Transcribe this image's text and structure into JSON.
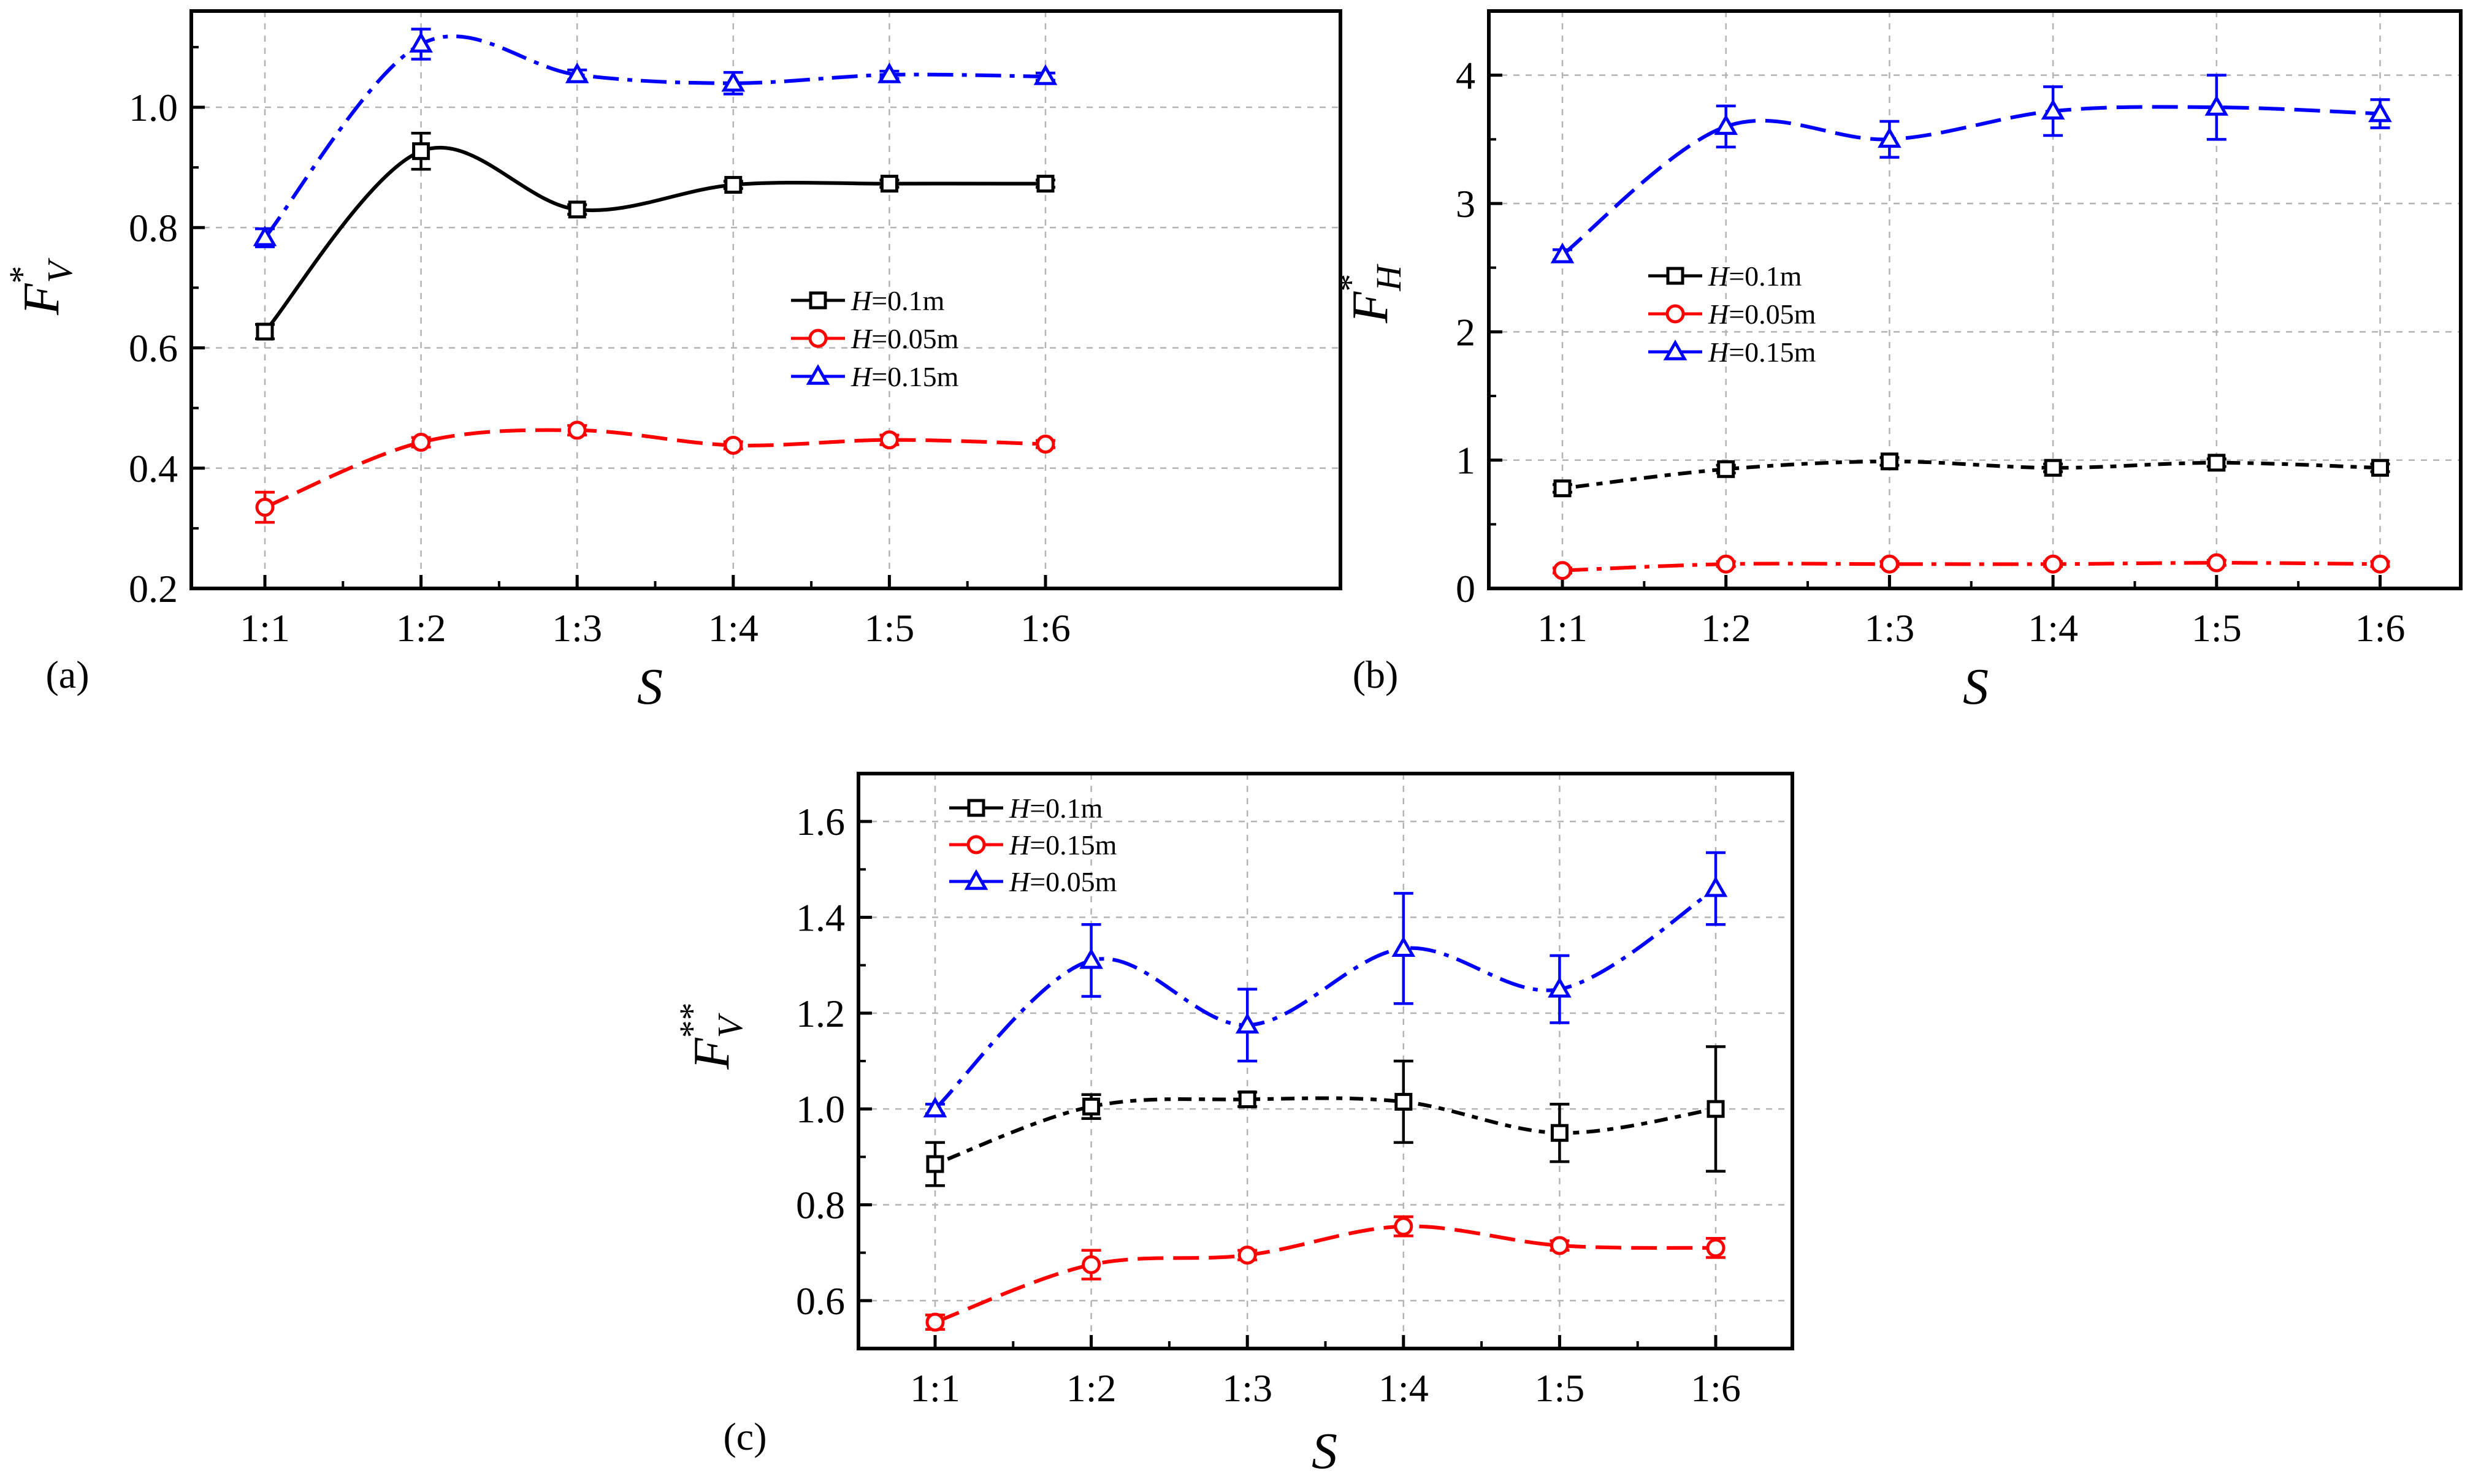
{
  "colors": {
    "black": "#000000",
    "red": "#ff0000",
    "blue": "#0000ff",
    "grid": "#b4b4b4"
  },
  "chart_data": [
    {
      "id": "a",
      "type": "line",
      "panel_label": "(a)",
      "x_label": "S",
      "y_label_base": "F",
      "y_label_sup": "*",
      "y_label_sub": "V",
      "categories": [
        "1:1",
        "1:2",
        "1:3",
        "1:4",
        "1:5",
        "1:6"
      ],
      "ylim": [
        0.2,
        1.16
      ],
      "yticks": [
        "0.2",
        "0.4",
        "0.6",
        "0.8",
        "1.0"
      ],
      "grid": true,
      "legend_position": "right",
      "series": [
        {
          "name": "H",
          "name_suffix": "=0.1m",
          "color": "#000000",
          "marker": "square",
          "dash": "solid",
          "values": [
            0.627,
            0.927,
            0.83,
            0.871,
            0.873,
            0.873
          ],
          "errors": [
            0.012,
            0.03,
            0.008,
            0.006,
            0.006,
            0.006
          ]
        },
        {
          "name": "H",
          "name_suffix": "=0.05m",
          "color": "#ff0000",
          "marker": "circle",
          "dash": "dashed",
          "values": [
            0.335,
            0.443,
            0.463,
            0.438,
            0.447,
            0.44
          ],
          "errors": [
            0.025,
            0.008,
            0.008,
            0.006,
            0.008,
            0.006
          ]
        },
        {
          "name": "H",
          "name_suffix": "=0.15m",
          "color": "#0000ff",
          "marker": "triangle",
          "dash": "dashdot",
          "values": [
            0.783,
            1.105,
            1.054,
            1.04,
            1.054,
            1.051
          ],
          "errors": [
            0.015,
            0.025,
            0.008,
            0.018,
            0.006,
            0.006
          ]
        }
      ]
    },
    {
      "id": "b",
      "type": "line",
      "panel_label": "(b)",
      "x_label": "S",
      "y_label_base": "F",
      "y_label_sup": "*",
      "y_label_sub": "H",
      "categories": [
        "1:1",
        "1:2",
        "1:3",
        "1:4",
        "1:5",
        "1:6"
      ],
      "ylim": [
        0,
        4.5
      ],
      "yticks": [
        "0",
        "1",
        "2",
        "3",
        "4"
      ],
      "grid": true,
      "legend_position": "middle",
      "series": [
        {
          "name": "H",
          "name_suffix": "=0.1m",
          "color": "#000000",
          "marker": "square",
          "dash": "dotdash",
          "values": [
            0.78,
            0.93,
            0.99,
            0.94,
            0.98,
            0.94
          ],
          "errors": [
            0.03,
            0.03,
            0.03,
            0.03,
            0.03,
            0.03
          ]
        },
        {
          "name": "H",
          "name_suffix": "=0.05m",
          "color": "#ff0000",
          "marker": "circle",
          "dash": "dashdot",
          "values": [
            0.14,
            0.19,
            0.19,
            0.19,
            0.2,
            0.19
          ],
          "errors": [
            0.02,
            0.02,
            0.02,
            0.02,
            0.02,
            0.02
          ]
        },
        {
          "name": "H",
          "name_suffix": "=0.15m",
          "color": "#0000ff",
          "marker": "triangle",
          "dash": "dashed",
          "values": [
            2.6,
            3.6,
            3.5,
            3.72,
            3.75,
            3.7
          ],
          "errors": [
            0.04,
            0.16,
            0.14,
            0.19,
            0.25,
            0.11
          ]
        }
      ]
    },
    {
      "id": "c",
      "type": "line",
      "panel_label": "(c)",
      "x_label": "S",
      "y_label_base": "F",
      "y_label_sup": "**",
      "y_label_sub": "V",
      "categories": [
        "1:1",
        "1:2",
        "1:3",
        "1:4",
        "1:5",
        "1:6"
      ],
      "ylim": [
        0.5,
        1.7
      ],
      "yticks": [
        "0.6",
        "0.8",
        "1.0",
        "1.2",
        "1.4",
        "1.6"
      ],
      "grid": true,
      "legend_position": "top-left",
      "series": [
        {
          "name": "H",
          "name_suffix": "=0.1m",
          "color": "#000000",
          "marker": "square",
          "dash": "dotdash",
          "values": [
            0.885,
            1.005,
            1.02,
            1.015,
            0.95,
            1.0
          ],
          "errors": [
            0.045,
            0.025,
            0.015,
            0.085,
            0.06,
            0.13
          ]
        },
        {
          "name": "H",
          "name_suffix": "=0.15m",
          "color": "#ff0000",
          "marker": "circle",
          "dash": "dashed",
          "values": [
            0.555,
            0.675,
            0.695,
            0.755,
            0.715,
            0.71
          ],
          "errors": [
            0.015,
            0.03,
            0.01,
            0.02,
            0.01,
            0.02
          ]
        },
        {
          "name": "H",
          "name_suffix": "=0.05m",
          "color": "#0000ff",
          "marker": "triangle",
          "dash": "dashdot",
          "values": [
            1.0,
            1.31,
            1.175,
            1.335,
            1.25,
            1.46
          ],
          "errors": [
            0.01,
            0.075,
            0.075,
            0.115,
            0.07,
            0.075
          ]
        }
      ]
    }
  ]
}
